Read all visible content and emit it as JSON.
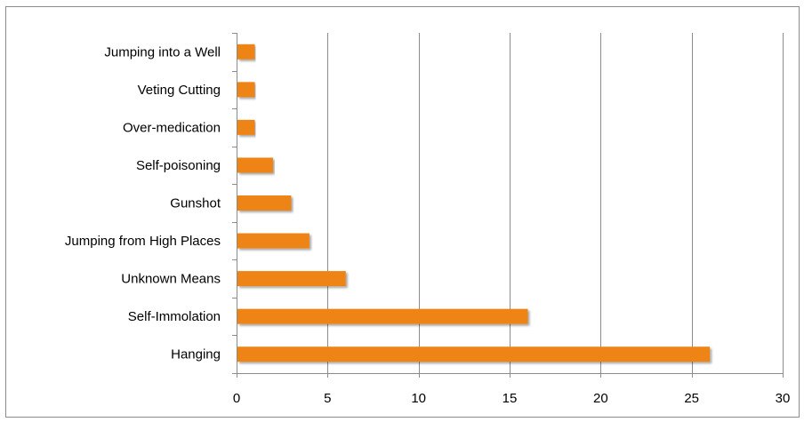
{
  "chart_data": {
    "type": "bar",
    "orientation": "horizontal",
    "categories": [
      "Hanging",
      "Self-Immolation",
      "Unknown Means",
      "Jumping from High Places",
      "Gunshot",
      "Self-poisoning",
      "Over-medication",
      "Veting Cutting",
      "Jumping into a Well"
    ],
    "values": [
      26,
      16,
      6,
      4,
      3,
      2,
      1,
      1,
      1
    ],
    "xlim": [
      0,
      30
    ],
    "xticks": [
      0,
      5,
      10,
      15,
      20,
      25,
      30
    ],
    "grid": "vertical major gridlines",
    "legend": "none",
    "bar_color": "#ef8412",
    "gridline_color": "#8c8c8c"
  }
}
